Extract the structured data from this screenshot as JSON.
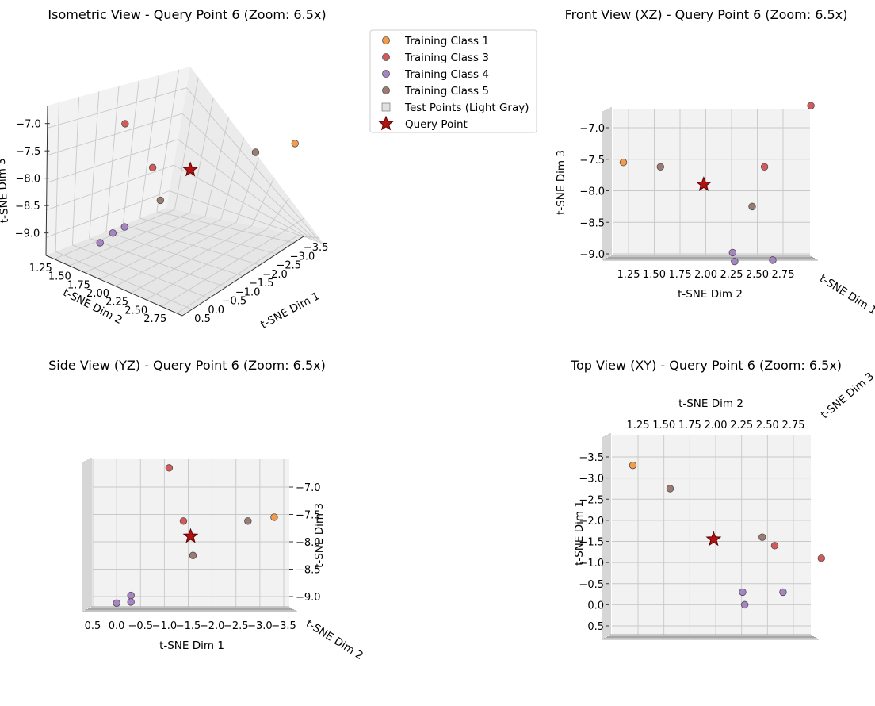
{
  "legend": {
    "entries": [
      {
        "label": "Training Class 1",
        "marker": "circle",
        "color": "#f39a4b"
      },
      {
        "label": "Training Class 3",
        "marker": "circle",
        "color": "#d45a5a"
      },
      {
        "label": "Training Class 4",
        "marker": "circle",
        "color": "#a784c4"
      },
      {
        "label": "Training Class 5",
        "marker": "circle",
        "color": "#9c7b72"
      },
      {
        "label": "Test Points (Light Gray)",
        "marker": "square",
        "color": "#e0e0e0"
      },
      {
        "label": "Query Point",
        "marker": "star",
        "color": "#b31212"
      }
    ]
  },
  "chart_data": [
    {
      "type": "scatter",
      "view": "isometric",
      "title": "Isometric View - Query Point 6 (Zoom: 6.5x)",
      "xlabel": "t-SNE Dim 1",
      "ylabel": "t-SNE Dim 2",
      "zlabel": "t-SNE Dim 3",
      "x_ticks": [
        "0.5",
        "0.0",
        "−0.5",
        "−1.0",
        "−1.5",
        "−2.0",
        "−2.5",
        "−3.0",
        "−3.5"
      ],
      "y_ticks": [
        "1.25",
        "1.50",
        "1.75",
        "2.00",
        "2.25",
        "2.50",
        "2.75"
      ],
      "z_ticks": [
        "−7.0",
        "−7.5",
        "−8.0",
        "−8.5",
        "−9.0"
      ]
    },
    {
      "type": "scatter",
      "view": "front-xz",
      "title": "Front View (XZ) - Query Point 6 (Zoom: 6.5x)",
      "xlabel": "t-SNE Dim 2",
      "ylabel": "t-SNE Dim 3",
      "depth_label": "t-SNE Dim 1",
      "x_ticks": [
        "1.25",
        "1.50",
        "1.75",
        "2.00",
        "2.25",
        "2.50",
        "2.75"
      ],
      "y_ticks": [
        "−7.0",
        "−7.5",
        "−8.0",
        "−8.5",
        "−9.0"
      ]
    },
    {
      "type": "scatter",
      "view": "side-yz",
      "title": "Side View (YZ) - Query Point 6 (Zoom: 6.5x)",
      "xlabel": "t-SNE Dim 1",
      "ylabel": "t-SNE Dim 3",
      "depth_label": "t-SNE Dim 2",
      "x_ticks": [
        "0.5",
        "0.0",
        "−0.5",
        "−1.0",
        "−1.5",
        "−2.0",
        "−2.5",
        "−3.0",
        "−3.5"
      ],
      "y_ticks": [
        "−7.0",
        "−7.5",
        "−8.0",
        "−8.5",
        "−9.0"
      ]
    },
    {
      "type": "scatter",
      "view": "top-xy",
      "title": "Top View (XY) - Query Point 6 (Zoom: 6.5x)",
      "xlabel": "t-SNE Dim 2",
      "ylabel": "t-SNE Dim 1",
      "depth_label": "t-SNE Dim 3",
      "x_ticks": [
        "1.25",
        "1.50",
        "1.75",
        "2.00",
        "2.25",
        "2.50",
        "2.75"
      ],
      "y_ticks": [
        "−3.5",
        "−3.0",
        "−2.5",
        "−2.0",
        "−1.5",
        "−1.0",
        "−0.5",
        "0.0",
        "0.5"
      ]
    }
  ],
  "points": [
    {
      "cls": 1,
      "dim1": -3.3,
      "dim2": 1.2,
      "dim3": -7.55
    },
    {
      "cls": 3,
      "dim1": -1.4,
      "dim2": 2.57,
      "dim3": -7.62
    },
    {
      "cls": 3,
      "dim1": -1.1,
      "dim2": 3.02,
      "dim3": -6.65
    },
    {
      "cls": 4,
      "dim1": -0.3,
      "dim2": 2.26,
      "dim3": -8.98
    },
    {
      "cls": 4,
      "dim1": 0.0,
      "dim2": 2.28,
      "dim3": -9.12
    },
    {
      "cls": 4,
      "dim1": -0.3,
      "dim2": 2.65,
      "dim3": -9.1
    },
    {
      "cls": 5,
      "dim1": -2.75,
      "dim2": 1.56,
      "dim3": -7.62
    },
    {
      "cls": 5,
      "dim1": -1.6,
      "dim2": 2.45,
      "dim3": -8.25
    },
    {
      "cls": "query",
      "dim1": -1.55,
      "dim2": 1.98,
      "dim3": -7.9
    }
  ]
}
